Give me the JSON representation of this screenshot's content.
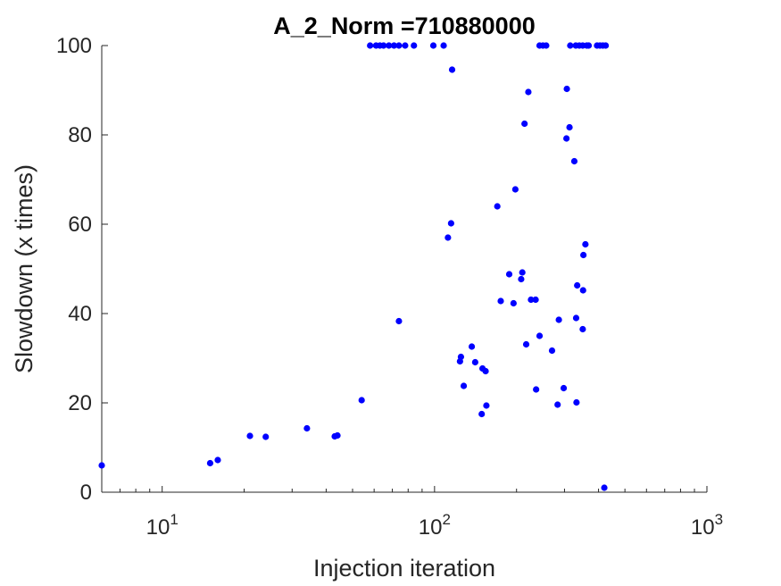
{
  "chart_data": {
    "type": "scatter",
    "title": "A_2_Norm =710880000",
    "xlabel": "Injection iteration",
    "ylabel": "Slowdown (x times)",
    "xscale": "log",
    "xlim": [
      6,
      1000
    ],
    "ylim": [
      0,
      100
    ],
    "grid": false,
    "x_ticks": [
      10,
      100,
      1000
    ],
    "x_tick_labels": [
      {
        "base": "10",
        "exp": "1"
      },
      {
        "base": "10",
        "exp": "2"
      },
      {
        "base": "10",
        "exp": "3"
      }
    ],
    "y_ticks": [
      0,
      20,
      40,
      60,
      80,
      100
    ],
    "y_tick_labels": [
      "0",
      "20",
      "40",
      "60",
      "80",
      "100"
    ],
    "marker_color": "#0000ff",
    "axis_color": "#262626",
    "points": [
      [
        6,
        6
      ],
      [
        15,
        6.5
      ],
      [
        16,
        7.2
      ],
      [
        21,
        12.6
      ],
      [
        24,
        12.4
      ],
      [
        34,
        14.3
      ],
      [
        43,
        12.5
      ],
      [
        44,
        12.7
      ],
      [
        54,
        20.6
      ],
      [
        74,
        38.3
      ],
      [
        112,
        57
      ],
      [
        115,
        60.2
      ],
      [
        116,
        94.6
      ],
      [
        124,
        29.3
      ],
      [
        125,
        30.3
      ],
      [
        128,
        23.8
      ],
      [
        137,
        32.6
      ],
      [
        141,
        29.1
      ],
      [
        149,
        17.5
      ],
      [
        150,
        27.7
      ],
      [
        154,
        27.1
      ],
      [
        155,
        19.4
      ],
      [
        170,
        64
      ],
      [
        175,
        42.8
      ],
      [
        188,
        48.8
      ],
      [
        195,
        42.3
      ],
      [
        198,
        67.8
      ],
      [
        208,
        47.7
      ],
      [
        210,
        49.2
      ],
      [
        214,
        82.5
      ],
      [
        217,
        33.1
      ],
      [
        221,
        89.6
      ],
      [
        226,
        43.1
      ],
      [
        235,
        43.1
      ],
      [
        236,
        23
      ],
      [
        243,
        35
      ],
      [
        270,
        31.7
      ],
      [
        283,
        19.6
      ],
      [
        286,
        38.6
      ],
      [
        298,
        23.3
      ],
      [
        305,
        79.2
      ],
      [
        306,
        90.3
      ],
      [
        313,
        81.7
      ],
      [
        326,
        74.1
      ],
      [
        331,
        39
      ],
      [
        332,
        20.1
      ],
      [
        334,
        46.3
      ],
      [
        350,
        36.5
      ],
      [
        351,
        45.2
      ],
      [
        352,
        53.1
      ],
      [
        358,
        55.5
      ],
      [
        420,
        1
      ],
      [
        58,
        100
      ],
      [
        61,
        100
      ],
      [
        63,
        100
      ],
      [
        65,
        100
      ],
      [
        68,
        100
      ],
      [
        71,
        100
      ],
      [
        74,
        100
      ],
      [
        78,
        100
      ],
      [
        84,
        100
      ],
      [
        99,
        100
      ],
      [
        108,
        100
      ],
      [
        243,
        100
      ],
      [
        250,
        100
      ],
      [
        257,
        100
      ],
      [
        315,
        100
      ],
      [
        330,
        100
      ],
      [
        340,
        100
      ],
      [
        350,
        100
      ],
      [
        362,
        100
      ],
      [
        368,
        100
      ],
      [
        395,
        100
      ],
      [
        405,
        100
      ],
      [
        415,
        100
      ],
      [
        425,
        100
      ]
    ]
  }
}
